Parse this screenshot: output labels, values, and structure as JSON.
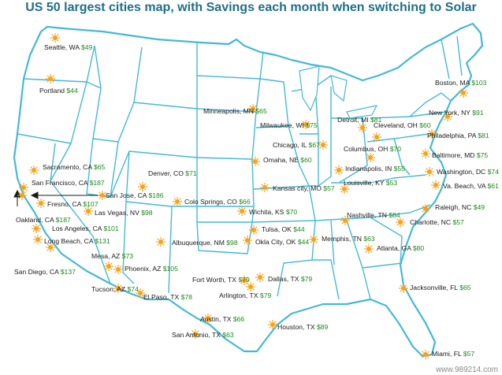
{
  "title": "US 50 largest cities map, with Savings each month when switching to Solar",
  "watermark": "www.989214.com",
  "colors": {
    "land": "#ffffff",
    "border": "#45b9d4",
    "title": "#1f6f88",
    "city_text": "#1a1a1a",
    "savings_text": "#1c8a1c",
    "sun": "#f5a31a"
  },
  "marker_icon": "sun-icon",
  "cities": [
    {
      "name": "Seattle, WA",
      "savings": "$49"
    },
    {
      "name": "Portland",
      "savings": "$44"
    },
    {
      "name": "Minneapolis, MN",
      "savings": "$65"
    },
    {
      "name": "Milwaukee, WI",
      "savings": "$75"
    },
    {
      "name": "Detroit, MI",
      "savings": "$81"
    },
    {
      "name": "Cleveland, OH",
      "savings": "$60"
    },
    {
      "name": "Boston, MA",
      "savings": "$103"
    },
    {
      "name": "New York, NY",
      "savings": "$91"
    },
    {
      "name": "Philadelphia, PA",
      "savings": "$81"
    },
    {
      "name": "Baltimore, MD",
      "savings": "$75"
    },
    {
      "name": "Washington, DC",
      "savings": "$74"
    },
    {
      "name": "Va. Beach, VA",
      "savings": "$61"
    },
    {
      "name": "Chicago, IL",
      "savings": "$67"
    },
    {
      "name": "Columbus, OH",
      "savings": "$70"
    },
    {
      "name": "Indianapolis, IN",
      "savings": "$55"
    },
    {
      "name": "Louisville, KY",
      "savings": "$53"
    },
    {
      "name": "Omaha, NE",
      "savings": "$60"
    },
    {
      "name": "Kansas city, MO",
      "savings": "$57"
    },
    {
      "name": "Denver, CO",
      "savings": "$71"
    },
    {
      "name": "Colo Springs, CO",
      "savings": "$66"
    },
    {
      "name": "Wichita, KS",
      "savings": "$70"
    },
    {
      "name": "Sacramento, CA",
      "savings": "$65"
    },
    {
      "name": "San Francisco, CA",
      "savings": "$187"
    },
    {
      "name": "San Jose, CA",
      "savings": "$186"
    },
    {
      "name": "Fresno, CA",
      "savings": "$107"
    },
    {
      "name": "Las Vegas, NV",
      "savings": "$98"
    },
    {
      "name": "Oakland, CA",
      "savings": "$187"
    },
    {
      "name": "Los Angeles, CA",
      "savings": "$101"
    },
    {
      "name": "Long Beach, CA",
      "savings": "$131"
    },
    {
      "name": "San Diego, CA",
      "savings": "$137"
    },
    {
      "name": "Mesa, AZ",
      "savings": "$73"
    },
    {
      "name": "Phoenix, AZ",
      "savings": "$105"
    },
    {
      "name": "Tucson, AZ",
      "savings": "$74"
    },
    {
      "name": "Albuquerque, NM",
      "savings": "$98"
    },
    {
      "name": "El Paso, TX",
      "savings": "$78"
    },
    {
      "name": "Tulsa, OK",
      "savings": "$44"
    },
    {
      "name": "Okla City, OK",
      "savings": "$44"
    },
    {
      "name": "Memphis, TN",
      "savings": "$63"
    },
    {
      "name": "Nashville, TN",
      "savings": "$84"
    },
    {
      "name": "Charlotte, NC",
      "savings": "$57"
    },
    {
      "name": "Raleigh, NC",
      "savings": "$49"
    },
    {
      "name": "Atlanta, GA",
      "savings": "$80"
    },
    {
      "name": "Fort Worth, TX",
      "savings": "$79"
    },
    {
      "name": "Dallas, TX",
      "savings": "$79"
    },
    {
      "name": "Arlington, TX",
      "savings": "$79"
    },
    {
      "name": "Austin, TX",
      "savings": "$66"
    },
    {
      "name": "San Antonio, TX",
      "savings": "$63"
    },
    {
      "name": "Houston, TX",
      "savings": "$89"
    },
    {
      "name": "Jacksonville, FL",
      "savings": "$65"
    },
    {
      "name": "Miami, FL",
      "savings": "$57"
    }
  ]
}
